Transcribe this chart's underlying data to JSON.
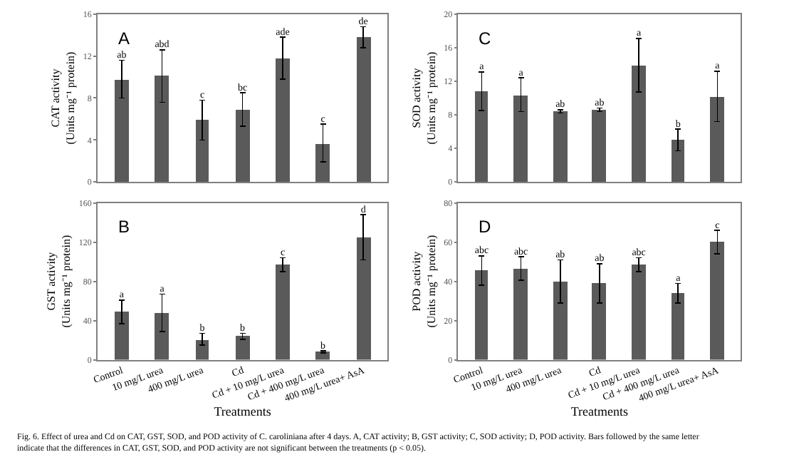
{
  "chart_data": [
    {
      "type": "bar",
      "ylabel": "CAT activity\n(Units mg⁻¹ protein)",
      "categories": [
        null,
        null,
        null,
        null,
        null,
        null,
        null
      ],
      "values": [
        9.8,
        10.1,
        5.9,
        6.9,
        11.8,
        3.7,
        13.8
      ],
      "errors": [
        1.8,
        2.5,
        1.9,
        1.6,
        2.0,
        1.8,
        1.0
      ],
      "value_labels": [
        "ab",
        "abd",
        "c",
        "bc",
        "ade",
        "c",
        "de"
      ],
      "color": "#5a5a5a",
      "ylim": [
        0,
        16
      ],
      "yticks": [
        0,
        4,
        8,
        12,
        16
      ],
      "tick_labels": "y",
      "annotations": [
        "A"
      ]
    },
    {
      "type": "bar",
      "ylabel": "SOD activity\n(Units mg⁻¹ protein)",
      "categories": [
        null,
        null,
        null,
        null,
        null,
        null,
        null
      ],
      "values": [
        10.8,
        10.4,
        8.4,
        8.6,
        13.9,
        5.0,
        10.2
      ],
      "errors": [
        2.3,
        2.0,
        0.2,
        0.2,
        3.2,
        1.3,
        3.0
      ],
      "value_labels": [
        "a",
        "a",
        "ab",
        "ab",
        "a",
        "b",
        "a"
      ],
      "color": "#5a5a5a",
      "ylim": [
        0,
        20
      ],
      "yticks": [
        0,
        4,
        8,
        12,
        16,
        20
      ],
      "tick_labels": "y",
      "annotations": [
        "C"
      ]
    },
    {
      "type": "bar",
      "xlabel": "Treatments",
      "ylabel": "GST activity\n(Units mg⁻¹ protein)",
      "categories": [
        "Control",
        "10 mg/L urea",
        "400 mg/L urea",
        "Cd",
        "Cd + 10 mg/L urea",
        "Cd + 400 mg/L urea",
        "400 mg/L urea+ AsA"
      ],
      "values": [
        49,
        48,
        21,
        24,
        97,
        8,
        125
      ],
      "errors": [
        12,
        19,
        6,
        3,
        7,
        1,
        23
      ],
      "value_labels": [
        "a",
        "a",
        "b",
        "b",
        "c",
        "b",
        "d"
      ],
      "color": "#5a5a5a",
      "ylim": [
        0,
        160
      ],
      "yticks": [
        0,
        40,
        80,
        120,
        160
      ],
      "annotations": [
        "B"
      ]
    },
    {
      "type": "bar",
      "xlabel": "Treatments",
      "ylabel": "POD activity\n(Units mg⁻¹ protein)",
      "categories": [
        "Control",
        "10 mg/L urea",
        "400 mg/L urea",
        "Cd",
        "Cd + 10 mg/L urea",
        "Cd + 400 mg/L urea",
        "400 mg/L urea+ AsA"
      ],
      "values": [
        45.5,
        46.5,
        40,
        39,
        48.5,
        34,
        60
      ],
      "errors": [
        7.5,
        6,
        11,
        10,
        3.5,
        5,
        6
      ],
      "value_labels": [
        "abc",
        "abc",
        "ab",
        "ab",
        "abc",
        "a",
        "c"
      ],
      "color": "#5a5a5a",
      "ylim": [
        0,
        80
      ],
      "yticks": [
        0,
        20,
        40,
        60,
        80
      ],
      "annotations": [
        "D",
        "Fig. 6. Effect of urea and Cd on CAT, GST, SOD, and POD activity of C. caroliniana after 4 days. A, CAT activity; B, GST activity; C, SOD activity; D, POD activity. Bars followed by the same letter indicate that the differences in CAT, GST, SOD, and POD activity are not significant between the treatments (p < 0.05)."
      ]
    }
  ]
}
